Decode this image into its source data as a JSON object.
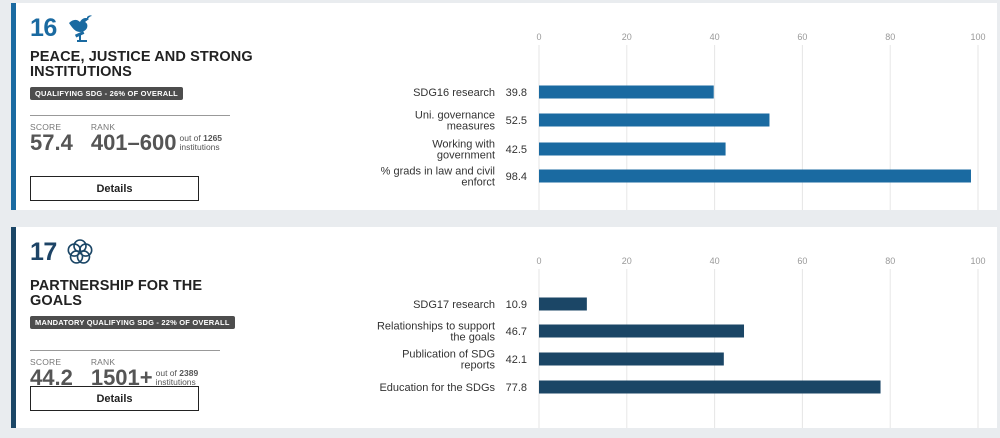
{
  "sdgs": [
    {
      "number": "16",
      "icon": "dove-gavel-icon",
      "title": "PEACE, JUSTICE AND STRONG INSTITUTIONS",
      "badge": "QUALIFYING SDG - 26% OF OVERALL",
      "score_label": "SCORE",
      "score": "57.4",
      "rank_label": "RANK",
      "rank": "401–600",
      "out_of_prefix": "out of ",
      "total": "1265",
      "institutions_label": "institutions",
      "details_label": "Details",
      "accent": "#1a6aa1",
      "chart_data": {
        "type": "bar",
        "orientation": "horizontal",
        "x_ticks": [
          0,
          20,
          40,
          60,
          80,
          100
        ],
        "xlim": [
          0,
          100
        ],
        "categories": [
          [
            "SDG16 research"
          ],
          [
            "Uni. governance",
            "measures"
          ],
          [
            "Working with",
            "government"
          ],
          [
            "% grads in law and civil",
            "enforct"
          ]
        ],
        "values": [
          39.8,
          52.5,
          42.5,
          98.4
        ],
        "value_labels": [
          "39.8",
          "52.5",
          "42.5",
          "98.4"
        ],
        "bar_color": "#1a6aa1"
      }
    },
    {
      "number": "17",
      "icon": "flower-rings-icon",
      "title": "PARTNERSHIP FOR THE GOALS",
      "badge": "MANDATORY QUALIFYING SDG - 22% OF OVERALL",
      "score_label": "SCORE",
      "score": "44.2",
      "rank_label": "RANK",
      "rank": "1501+",
      "out_of_prefix": "out of ",
      "total": "2389",
      "institutions_label": "institutions",
      "details_label": "Details",
      "accent": "#1b4666",
      "chart_data": {
        "type": "bar",
        "orientation": "horizontal",
        "x_ticks": [
          0,
          20,
          40,
          60,
          80,
          100
        ],
        "xlim": [
          0,
          100
        ],
        "categories": [
          [
            "SDG17 research"
          ],
          [
            "Relationships to support",
            "the goals"
          ],
          [
            "Publication of SDG",
            "reports"
          ],
          [
            "Education for the SDGs"
          ]
        ],
        "values": [
          10.9,
          46.7,
          42.1,
          77.8
        ],
        "value_labels": [
          "10.9",
          "46.7",
          "42.1",
          "77.8"
        ],
        "bar_color": "#1b4666"
      }
    }
  ]
}
